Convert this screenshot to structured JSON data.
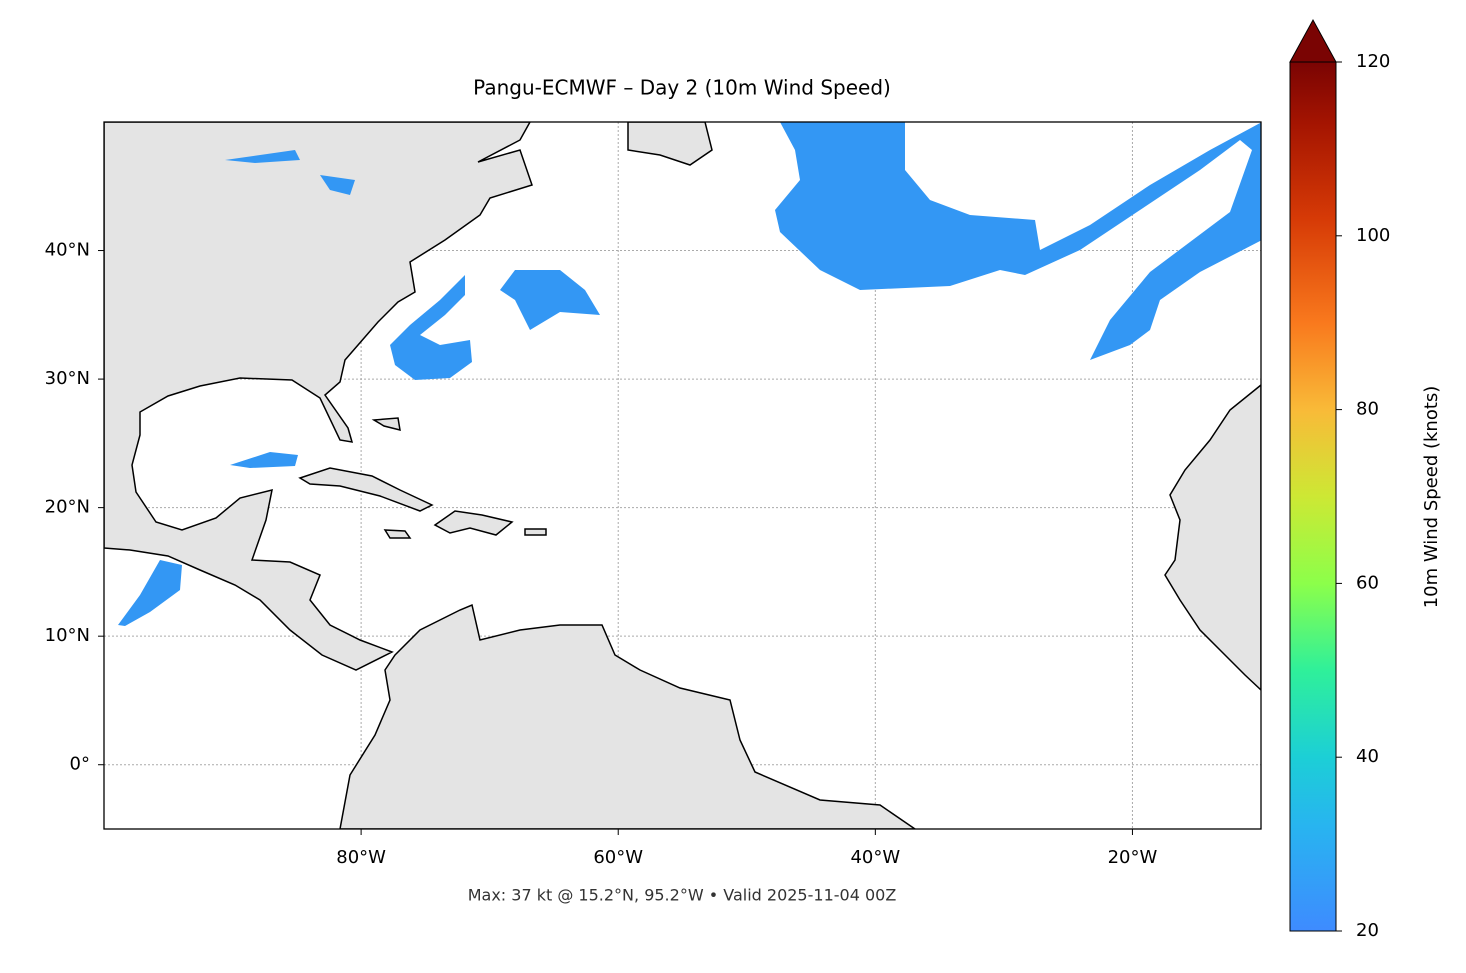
{
  "chart_data": {
    "type": "map",
    "title": "Pangu-ECMWF – Day 2 (10m Wind Speed)",
    "footnote": "Max: 37 kt @ 15.2°N, 95.2°W • Valid 2025-11-04 00Z",
    "xlim": [
      -100,
      -10
    ],
    "ylim": [
      -5,
      50
    ],
    "xticks": [
      {
        "value": -80,
        "label": "80°W"
      },
      {
        "value": -60,
        "label": "60°W"
      },
      {
        "value": -40,
        "label": "40°W"
      },
      {
        "value": -20,
        "label": "20°W"
      }
    ],
    "yticks": [
      {
        "value": 0,
        "label": "0°"
      },
      {
        "value": 10,
        "label": "10°N"
      },
      {
        "value": 20,
        "label": "20°N"
      },
      {
        "value": 30,
        "label": "30°N"
      },
      {
        "value": 40,
        "label": "40°N"
      }
    ],
    "grid": true,
    "colorbar": {
      "label": "10m Wind Speed (knots)",
      "lim": [
        20,
        120
      ],
      "ticks": [
        20,
        40,
        60,
        80,
        100,
        120
      ]
    }
  }
}
